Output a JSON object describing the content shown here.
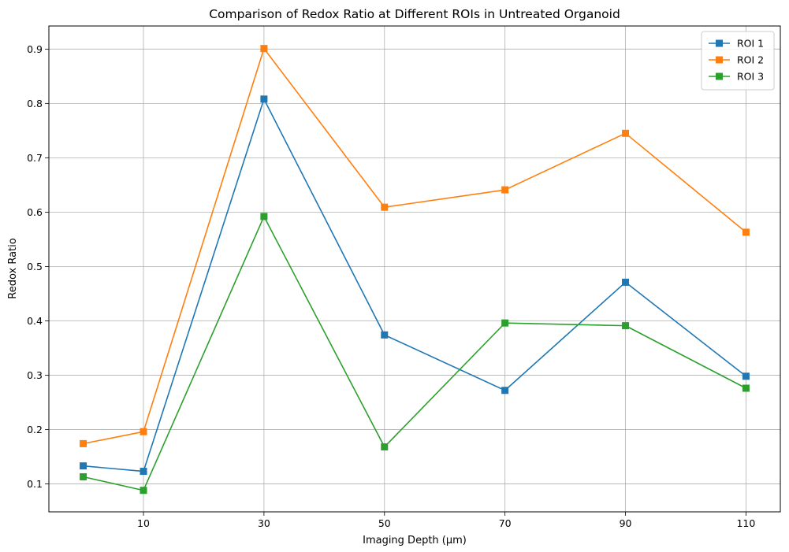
{
  "chart_data": {
    "type": "line",
    "title": "Comparison of Redox Ratio at Different ROIs in Untreated Organoid",
    "xlabel": "Imaging Depth (µm)",
    "ylabel": "Redox Ratio",
    "x_tick_labels": [
      "10",
      "30",
      "50",
      "70",
      "90",
      "110"
    ],
    "y_tick_labels": [
      "0.1",
      "0.2",
      "0.3",
      "0.4",
      "0.5",
      "0.6",
      "0.7",
      "0.8",
      "0.9"
    ],
    "x": [
      0,
      10,
      30,
      50,
      70,
      90,
      110
    ],
    "xlim": [
      -5.7,
      115.7
    ],
    "ylim": [
      0.0485,
      0.9425
    ],
    "grid": true,
    "legend_position": "top-right",
    "marker": "square",
    "series": [
      {
        "name": "ROI 1",
        "color": "#1f77b4",
        "values": [
          0.133,
          0.123,
          0.808,
          0.374,
          0.272,
          0.471,
          0.298
        ]
      },
      {
        "name": "ROI 2",
        "color": "#ff7f0e",
        "values": [
          0.174,
          0.196,
          0.901,
          0.609,
          0.641,
          0.745,
          0.563
        ]
      },
      {
        "name": "ROI 3",
        "color": "#2ca02c",
        "values": [
          0.113,
          0.088,
          0.592,
          0.168,
          0.396,
          0.391,
          0.276
        ]
      }
    ]
  }
}
